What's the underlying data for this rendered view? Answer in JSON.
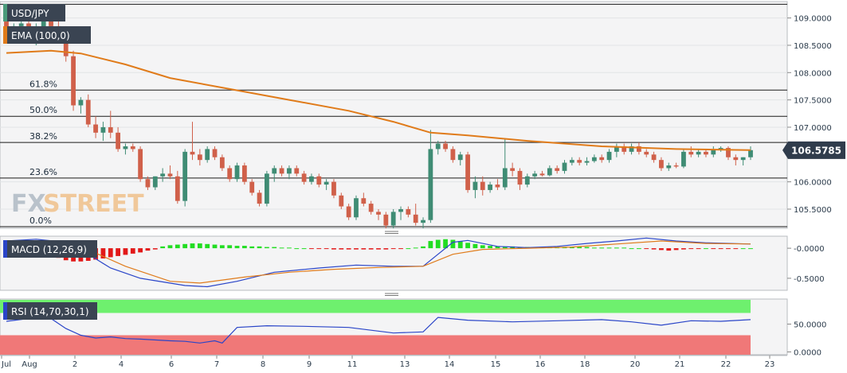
{
  "chart_data": [
    {
      "type": "candlestick",
      "title": "USD/JPY",
      "indicator": "EMA (100,0)",
      "ylim": [
        105.15,
        109.3
      ],
      "y_ticks": [
        "109.0000",
        "108.5000",
        "108.0000",
        "107.5000",
        "107.0000",
        "106.0000",
        "105.5000"
      ],
      "current_price": 106.5785,
      "current_price_label": "106.5785",
      "fibonacci": [
        {
          "label": "61.8%",
          "value": 107.68
        },
        {
          "label": "50.0%",
          "value": 107.2
        },
        {
          "label": "38.2%",
          "value": 106.72
        },
        {
          "label": "23.6%",
          "value": 106.07
        },
        {
          "label": "0.0%",
          "value": 105.18
        }
      ],
      "top_line": 109.25,
      "x_labels": [
        "Jul",
        "Aug",
        "2",
        "4",
        "6",
        "7",
        "8",
        "9",
        "11",
        "13",
        "14",
        "15",
        "16",
        "18",
        "20",
        "21",
        "22",
        "23"
      ],
      "candles": [
        [
          109.1,
          109.2,
          108.6,
          108.7
        ],
        [
          108.7,
          108.9,
          108.55,
          108.85
        ],
        [
          108.85,
          109.0,
          108.7,
          108.9
        ],
        [
          108.9,
          109.0,
          108.6,
          108.75
        ],
        [
          108.75,
          108.9,
          108.5,
          108.8
        ],
        [
          108.8,
          109.05,
          108.7,
          109.0
        ],
        [
          109.0,
          109.1,
          108.7,
          108.85
        ],
        [
          108.85,
          108.95,
          108.55,
          108.7
        ],
        [
          108.7,
          108.85,
          108.2,
          108.3
        ],
        [
          108.3,
          108.4,
          107.3,
          107.4
        ],
        [
          107.4,
          107.55,
          107.25,
          107.5
        ],
        [
          107.5,
          107.6,
          107.0,
          107.05
        ],
        [
          107.05,
          107.2,
          106.8,
          106.9
        ],
        [
          106.9,
          107.1,
          106.75,
          107.0
        ],
        [
          107.0,
          107.3,
          106.8,
          106.9
        ],
        [
          106.9,
          107.0,
          106.55,
          106.6
        ],
        [
          106.6,
          106.7,
          106.5,
          106.65
        ],
        [
          106.65,
          106.7,
          106.55,
          106.6
        ],
        [
          106.6,
          106.65,
          106.0,
          106.05
        ],
        [
          106.05,
          106.1,
          105.85,
          105.9
        ],
        [
          105.9,
          106.1,
          105.85,
          106.1
        ],
        [
          106.1,
          106.25,
          106.0,
          106.15
        ],
        [
          106.15,
          106.3,
          106.05,
          106.1
        ],
        [
          106.1,
          106.2,
          105.6,
          105.65
        ],
        [
          105.65,
          106.6,
          105.55,
          106.55
        ],
        [
          106.55,
          107.1,
          106.4,
          106.5
        ],
        [
          106.5,
          106.6,
          106.3,
          106.4
        ],
        [
          106.4,
          106.65,
          106.35,
          106.6
        ],
        [
          106.6,
          106.65,
          106.4,
          106.45
        ],
        [
          106.45,
          106.5,
          106.2,
          106.25
        ],
        [
          106.25,
          106.3,
          106.0,
          106.05
        ],
        [
          106.05,
          106.35,
          106.0,
          106.3
        ],
        [
          106.3,
          106.35,
          105.95,
          106.0
        ],
        [
          106.0,
          106.05,
          105.75,
          105.8
        ],
        [
          105.8,
          105.85,
          105.55,
          105.6
        ],
        [
          105.6,
          106.2,
          105.55,
          106.15
        ],
        [
          106.15,
          106.3,
          106.0,
          106.25
        ],
        [
          106.25,
          106.3,
          106.1,
          106.15
        ],
        [
          106.15,
          106.3,
          106.05,
          106.25
        ],
        [
          106.25,
          106.3,
          106.1,
          106.15
        ],
        [
          106.15,
          106.2,
          105.95,
          106.0
        ],
        [
          106.0,
          106.15,
          105.95,
          106.1
        ],
        [
          106.1,
          106.15,
          105.9,
          105.95
        ],
        [
          105.95,
          106.05,
          105.85,
          106.0
        ],
        [
          106.0,
          106.05,
          105.7,
          105.75
        ],
        [
          105.75,
          105.8,
          105.5,
          105.55
        ],
        [
          105.55,
          105.6,
          105.3,
          105.35
        ],
        [
          105.35,
          105.75,
          105.3,
          105.7
        ],
        [
          105.7,
          105.8,
          105.55,
          105.6
        ],
        [
          105.6,
          105.65,
          105.4,
          105.45
        ],
        [
          105.45,
          105.5,
          105.3,
          105.4
        ],
        [
          105.4,
          105.45,
          105.15,
          105.2
        ],
        [
          105.2,
          105.5,
          105.15,
          105.45
        ],
        [
          105.45,
          105.55,
          105.3,
          105.5
        ],
        [
          105.5,
          105.55,
          105.35,
          105.4
        ],
        [
          105.4,
          105.6,
          105.2,
          105.25
        ],
        [
          105.25,
          105.35,
          105.15,
          105.3
        ],
        [
          105.3,
          106.95,
          105.25,
          106.6
        ],
        [
          106.6,
          106.75,
          106.5,
          106.7
        ],
        [
          106.7,
          106.75,
          106.55,
          106.6
        ],
        [
          106.6,
          106.65,
          106.35,
          106.4
        ],
        [
          106.4,
          106.55,
          106.3,
          106.5
        ],
        [
          106.5,
          106.55,
          105.8,
          105.85
        ],
        [
          105.85,
          106.1,
          105.7,
          106.0
        ],
        [
          106.0,
          106.1,
          105.75,
          105.85
        ],
        [
          105.85,
          106.0,
          105.8,
          105.95
        ],
        [
          105.95,
          106.05,
          105.85,
          105.9
        ],
        [
          105.9,
          106.8,
          105.85,
          106.25
        ],
        [
          106.25,
          106.35,
          106.1,
          106.2
        ],
        [
          106.2,
          106.25,
          105.85,
          105.95
        ],
        [
          105.95,
          106.15,
          105.9,
          106.1
        ],
        [
          106.1,
          106.2,
          106.05,
          106.15
        ],
        [
          106.15,
          106.2,
          106.1,
          106.12
        ],
        [
          106.12,
          106.3,
          106.1,
          106.25
        ],
        [
          106.25,
          106.3,
          106.15,
          106.2
        ],
        [
          106.2,
          106.4,
          106.15,
          106.35
        ],
        [
          106.35,
          106.45,
          106.3,
          106.4
        ],
        [
          106.4,
          106.45,
          106.3,
          106.35
        ],
        [
          106.35,
          106.45,
          106.3,
          106.38
        ],
        [
          106.38,
          106.5,
          106.35,
          106.45
        ],
        [
          106.45,
          106.5,
          106.35,
          106.4
        ],
        [
          106.4,
          106.6,
          106.35,
          106.55
        ],
        [
          106.55,
          106.7,
          106.45,
          106.65
        ],
        [
          106.65,
          106.7,
          106.5,
          106.55
        ],
        [
          106.55,
          106.7,
          106.5,
          106.65
        ],
        [
          106.65,
          106.72,
          106.5,
          106.55
        ],
        [
          106.55,
          106.6,
          106.45,
          106.5
        ],
        [
          106.5,
          106.55,
          106.35,
          106.4
        ],
        [
          106.4,
          106.45,
          106.2,
          106.25
        ],
        [
          106.25,
          106.35,
          106.2,
          106.3
        ],
        [
          106.3,
          106.35,
          106.25,
          106.28
        ],
        [
          106.28,
          106.6,
          106.25,
          106.55
        ],
        [
          106.55,
          106.65,
          106.45,
          106.5
        ],
        [
          106.5,
          106.6,
          106.45,
          106.55
        ],
        [
          106.55,
          106.6,
          106.45,
          106.5
        ],
        [
          106.5,
          106.65,
          106.45,
          106.6
        ],
        [
          106.6,
          106.65,
          106.55,
          106.62
        ],
        [
          106.62,
          106.65,
          106.4,
          106.45
        ],
        [
          106.45,
          106.5,
          106.3,
          106.4
        ],
        [
          106.4,
          106.45,
          106.3,
          106.45
        ],
        [
          106.45,
          106.65,
          106.4,
          106.58
        ]
      ],
      "ema": [
        [
          0,
          108.36
        ],
        [
          6,
          108.4
        ],
        [
          10,
          108.35
        ],
        [
          16,
          108.15
        ],
        [
          22,
          107.9
        ],
        [
          30,
          107.7
        ],
        [
          38,
          107.5
        ],
        [
          46,
          107.3
        ],
        [
          52,
          107.1
        ],
        [
          57,
          106.9
        ],
        [
          62,
          106.85
        ],
        [
          70,
          106.75
        ],
        [
          80,
          106.65
        ],
        [
          90,
          106.6
        ],
        [
          100,
          106.58
        ]
      ]
    },
    {
      "type": "line",
      "title": "MACD (12,26,9)",
      "ylim": [
        -0.7,
        0.2
      ],
      "y_ticks": [
        "-0.0000",
        "-0.5000"
      ],
      "histogram": [
        0.06,
        0.07,
        0.05,
        0.03,
        -0.03,
        -0.08,
        -0.12,
        -0.16,
        -0.2,
        -0.22,
        -0.22,
        -0.21,
        -0.19,
        -0.17,
        -0.15,
        -0.13,
        -0.11,
        -0.09,
        -0.07,
        -0.04,
        -0.02,
        0.03,
        0.05,
        0.06,
        0.07,
        0.08,
        0.08,
        0.07,
        0.06,
        0.05,
        0.05,
        0.04,
        0.04,
        0.03,
        0.03,
        0.02,
        0.02,
        0.01,
        0.01,
        0.0,
        0.0,
        -0.01,
        -0.01,
        -0.01,
        -0.02,
        -0.02,
        -0.02,
        -0.02,
        -0.02,
        -0.02,
        -0.02,
        -0.02,
        -0.01,
        -0.01,
        0.0,
        0.01,
        0.03,
        0.12,
        0.14,
        0.15,
        0.14,
        0.12,
        0.09,
        0.07,
        0.05,
        0.04,
        0.03,
        0.03,
        0.03,
        0.02,
        0.02,
        0.02,
        0.02,
        0.02,
        0.02,
        0.02,
        0.02,
        0.02,
        0.02,
        0.01,
        0.01,
        0.01,
        0.01,
        0.01,
        0.0,
        0.0,
        -0.01,
        -0.02,
        -0.03,
        -0.04,
        -0.03,
        -0.02,
        -0.01,
        -0.01,
        0.0,
        -0.01,
        -0.01,
        -0.01,
        -0.01,
        0.0,
        0.0
      ],
      "macd": [
        [
          0,
          0.12
        ],
        [
          4,
          0.15
        ],
        [
          8,
          0.1
        ],
        [
          11,
          -0.1
        ],
        [
          14,
          -0.33
        ],
        [
          18,
          -0.5
        ],
        [
          24,
          -0.62
        ],
        [
          27,
          -0.64
        ],
        [
          31,
          -0.55
        ],
        [
          36,
          -0.4
        ],
        [
          42,
          -0.33
        ],
        [
          47,
          -0.28
        ],
        [
          52,
          -0.3
        ],
        [
          54,
          -0.3
        ],
        [
          56,
          -0.3
        ],
        [
          58,
          -0.1
        ],
        [
          60,
          0.1
        ],
        [
          62,
          0.13
        ],
        [
          66,
          0.03
        ],
        [
          70,
          0.01
        ],
        [
          74,
          0.03
        ],
        [
          78,
          0.08
        ],
        [
          82,
          0.12
        ],
        [
          86,
          0.17
        ],
        [
          90,
          0.12
        ],
        [
          94,
          0.09
        ],
        [
          100,
          0.07
        ]
      ],
      "signal": [
        [
          0,
          0.08
        ],
        [
          8,
          0.08
        ],
        [
          12,
          -0.08
        ],
        [
          16,
          -0.3
        ],
        [
          22,
          -0.55
        ],
        [
          26,
          -0.58
        ],
        [
          32,
          -0.48
        ],
        [
          38,
          -0.4
        ],
        [
          44,
          -0.35
        ],
        [
          50,
          -0.32
        ],
        [
          56,
          -0.3
        ],
        [
          60,
          -0.1
        ],
        [
          64,
          -0.02
        ],
        [
          70,
          0.0
        ],
        [
          76,
          0.02
        ],
        [
          82,
          0.07
        ],
        [
          88,
          0.12
        ],
        [
          94,
          0.08
        ],
        [
          100,
          0.07
        ]
      ]
    },
    {
      "type": "line",
      "title": "RSI (14,70,30,1)",
      "ylim": [
        -5,
        95
      ],
      "y_ticks": [
        "50.0000",
        "0.0000"
      ],
      "overbought": 70,
      "oversold": 30,
      "rsi": [
        [
          0,
          55
        ],
        [
          3,
          60
        ],
        [
          6,
          60
        ],
        [
          8,
          42
        ],
        [
          10,
          30
        ],
        [
          12,
          25
        ],
        [
          14,
          27
        ],
        [
          16,
          24
        ],
        [
          18,
          23
        ],
        [
          22,
          20
        ],
        [
          24,
          19
        ],
        [
          26,
          16
        ],
        [
          28,
          20
        ],
        [
          29,
          16
        ],
        [
          31,
          44
        ],
        [
          35,
          47
        ],
        [
          40,
          46
        ],
        [
          46,
          44
        ],
        [
          52,
          34
        ],
        [
          56,
          36
        ],
        [
          58,
          62
        ],
        [
          62,
          57
        ],
        [
          68,
          54
        ],
        [
          74,
          56
        ],
        [
          80,
          58
        ],
        [
          84,
          54
        ],
        [
          88,
          48
        ],
        [
          92,
          56
        ],
        [
          96,
          55
        ],
        [
          100,
          58
        ]
      ]
    }
  ]
}
